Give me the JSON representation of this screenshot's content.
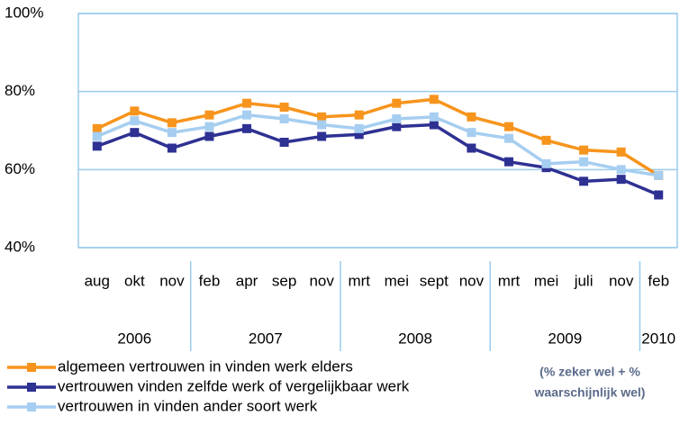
{
  "chart_data": {
    "type": "line",
    "categories": [
      "aug",
      "okt",
      "nov",
      "feb",
      "apr",
      "sep",
      "nov",
      "mrt",
      "mei",
      "sept",
      "nov",
      "mrt",
      "mei",
      "juli",
      "nov",
      "feb"
    ],
    "years": [
      "2006",
      "2007",
      "2008",
      "2009",
      "2010"
    ],
    "series": [
      {
        "name": "algemeen vertrouwen in vinden werk elders",
        "color": "#f7941d",
        "values": [
          70.5,
          75,
          72,
          74,
          77,
          76,
          73.5,
          74,
          77,
          78,
          73.5,
          71,
          67.5,
          65,
          64.5,
          58.5
        ]
      },
      {
        "name": "vertrouwen vinden zelfde werk of vergelijkbaar werk",
        "color": "#2e3192",
        "values": [
          66,
          69.5,
          65.5,
          68.5,
          70.5,
          67,
          68.5,
          69,
          71,
          71.5,
          65.5,
          62,
          60.5,
          57,
          57.5,
          53.5
        ]
      },
      {
        "name": "vertrouwen in vinden ander soort werk",
        "color": "#a6cef0",
        "values": [
          68.5,
          72.5,
          69.5,
          71,
          74,
          73,
          71.5,
          70.5,
          73,
          73.5,
          69.5,
          68,
          61.5,
          62,
          60,
          58.5
        ]
      }
    ],
    "ylim": [
      40,
      100
    ],
    "yticks": [
      {
        "value": 40,
        "label": "40%"
      },
      {
        "value": 60,
        "label": "60%"
      },
      {
        "value": 80,
        "label": "80%"
      },
      {
        "value": 100,
        "label": "100%"
      }
    ],
    "grid": true,
    "note": [
      "(% zeker wel + %",
      "waarschijnlijk wel)"
    ]
  }
}
